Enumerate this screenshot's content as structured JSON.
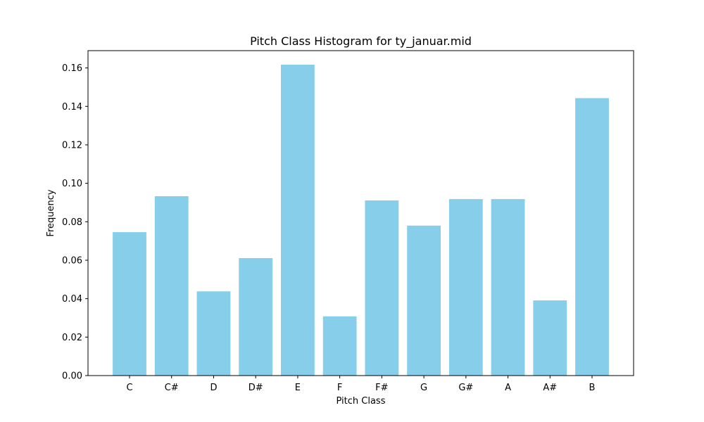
{
  "chart_data": {
    "type": "bar",
    "title": "Pitch Class Histogram for ty_januar.mid",
    "xlabel": "Pitch Class",
    "ylabel": "Frequency",
    "categories": [
      "C",
      "C#",
      "D",
      "D#",
      "E",
      "F",
      "F#",
      "G",
      "G#",
      "A",
      "A#",
      "B"
    ],
    "values": [
      0.0746,
      0.0933,
      0.0438,
      0.0611,
      0.1617,
      0.0308,
      0.0911,
      0.078,
      0.0918,
      0.0918,
      0.0391,
      0.1443
    ],
    "ylim": [
      0,
      0.169
    ],
    "yticks": [
      "0.00",
      "0.02",
      "0.04",
      "0.06",
      "0.08",
      "0.10",
      "0.12",
      "0.14",
      "0.16"
    ],
    "bar_color": "#87ceeb",
    "grid": false,
    "legend": "none"
  }
}
